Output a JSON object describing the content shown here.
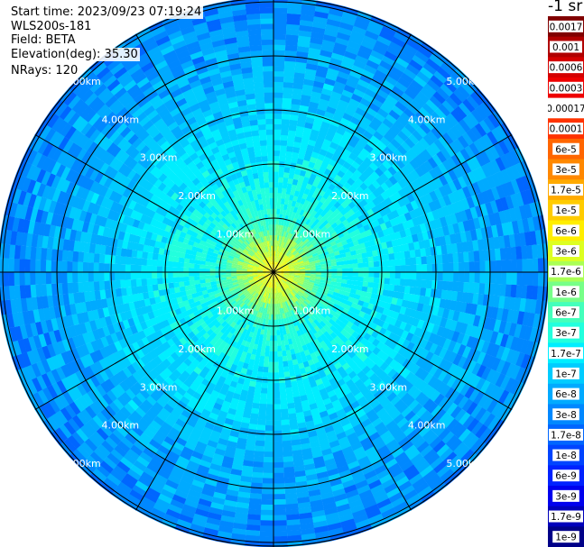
{
  "header": {
    "start_time": "Start time: 2023/09/23 07:19:24",
    "instrument": "WLS200s-181",
    "field": "Field: BETA",
    "elevation": "Elevation(deg): 35.30",
    "nrays": "NRays: 120"
  },
  "chart_data": {
    "type": "heatmap",
    "projection": "polar-ppi",
    "title": "",
    "ring_labels": [
      "1.00km",
      "2.00km",
      "3.00km",
      "4.00km",
      "5.00km"
    ],
    "ring_ranges_km": [
      1,
      2,
      3,
      4,
      5
    ],
    "max_range_km": 5.0,
    "spokes_deg": [
      0,
      30,
      60,
      90,
      120,
      150,
      180,
      210,
      240,
      270,
      300,
      330
    ],
    "nrays": 120,
    "colorbar": {
      "unit_label": "-1 sr",
      "tick_labels": [
        "0.0017",
        "0.001",
        "0.0006",
        "0.0003",
        "0.00017",
        "0.0001",
        "6e-5",
        "3e-5",
        "1.7e-5",
        "1e-5",
        "6e-6",
        "3e-6",
        "1.7e-6",
        "1e-6",
        "6e-7",
        "3e-7",
        "1.7e-7",
        "1e-7",
        "6e-8",
        "3e-8",
        "1.7e-8",
        "1e-8",
        "6e-9",
        "3e-9",
        "1.7e-9",
        "1e-9"
      ],
      "colors": [
        "#800000",
        "#b00000",
        "#d40000",
        "#ee0000",
        "#ffffff",
        "#ff3300",
        "#ff6600",
        "#ff8800",
        "#ffaa00",
        "#ffcc00",
        "#ffee00",
        "#ddff22",
        "#aaff55",
        "#77ff88",
        "#44ffbb",
        "#22ffdd",
        "#00eeff",
        "#00ccff",
        "#00aaff",
        "#0088ff",
        "#0066ff",
        "#0044ff",
        "#0022ff",
        "#0000ee",
        "#0000bb",
        "#000088"
      ]
    },
    "field_profile": [
      {
        "range_km": 0.0,
        "level": 10
      },
      {
        "range_km": 0.5,
        "level": 12
      },
      {
        "range_km": 1.0,
        "level": 15
      },
      {
        "range_km": 2.0,
        "level": 16
      },
      {
        "range_km": 3.0,
        "level": 17
      },
      {
        "range_km": 3.8,
        "level": 18
      },
      {
        "range_km": 4.5,
        "level": 18.5
      },
      {
        "range_km": 5.3,
        "level": 19.5
      }
    ]
  }
}
